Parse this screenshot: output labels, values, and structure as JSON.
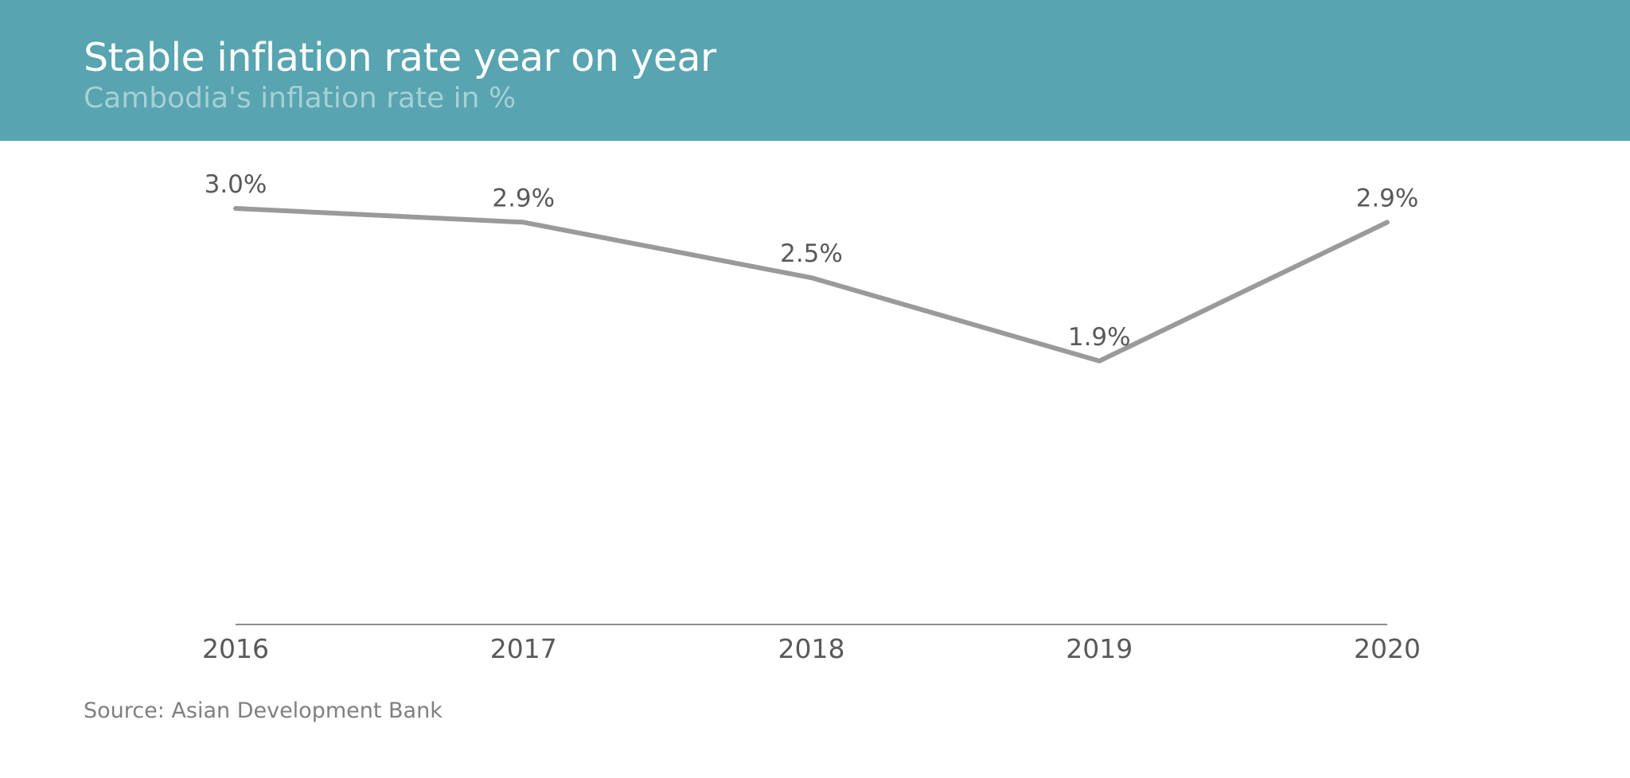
{
  "header": {
    "title": "Stable inflation rate year on year",
    "subtitle": "Cambodia's inflation rate in %",
    "background_color": "#58a4b0"
  },
  "source": "Source: Asian Development Bank",
  "chart_data": {
    "type": "line",
    "categories": [
      "2016",
      "2017",
      "2018",
      "2019",
      "2020"
    ],
    "series": [
      {
        "values": [
          3.0,
          2.9,
          2.5,
          1.9,
          2.9
        ],
        "data_labels": [
          "3.0%",
          "2.9%",
          "2.5%",
          "1.9%",
          "2.9%"
        ],
        "color": "#9a9a9a"
      }
    ],
    "title": "Stable inflation rate year on year",
    "subtitle": "Cambodia's inflation rate in %",
    "ylim": [
      0,
      3.0
    ],
    "grid": false,
    "legend": "none"
  }
}
